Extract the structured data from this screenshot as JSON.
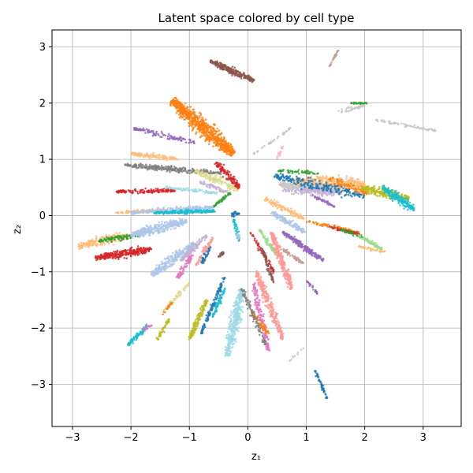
{
  "chart_data": {
    "type": "scatter",
    "title": "Latent space colored by cell type",
    "xlabel": "z₁",
    "ylabel": "z₂",
    "xlim": [
      -3.35,
      3.65
    ],
    "ylim": [
      -3.75,
      3.3
    ],
    "xticks": [
      -3,
      -2,
      -1,
      0,
      1,
      2,
      3
    ],
    "yticks": [
      -3,
      -2,
      -1,
      0,
      1,
      2,
      3
    ],
    "xtick_labels": [
      "−3",
      "−2",
      "−1",
      "0",
      "1",
      "2",
      "3"
    ],
    "ytick_labels": [
      "−3",
      "−2",
      "−1",
      "0",
      "1",
      "2",
      "3"
    ],
    "grid": true,
    "legend": "none",
    "palette": [
      "#1f77b4",
      "#aec7e8",
      "#ff7f0e",
      "#ffbb78",
      "#2ca02c",
      "#98df8a",
      "#d62728",
      "#ff9896",
      "#9467bd",
      "#c5b0d5",
      "#8c564b",
      "#c49c94",
      "#e377c2",
      "#f7b6d2",
      "#7f7f7f",
      "#c7c7c7",
      "#bcbd22",
      "#dbdb8d",
      "#17becf",
      "#9edae5"
    ],
    "clusters": [
      {
        "color": "#8c564b",
        "x0": -0.65,
        "y0": 2.75,
        "x1": 0.1,
        "y1": 2.4,
        "width": 0.09,
        "count": 260
      },
      {
        "color": "#c49c94",
        "x0": 1.4,
        "y0": 2.65,
        "x1": 1.55,
        "y1": 2.95,
        "width": 0.02,
        "count": 30
      },
      {
        "color": "#2ca02c",
        "x0": 1.75,
        "y0": 2.0,
        "x1": 2.05,
        "y1": 2.0,
        "width": 0.03,
        "count": 25
      },
      {
        "color": "#c7c7c7",
        "x0": 1.55,
        "y0": 1.85,
        "x1": 2.0,
        "y1": 1.95,
        "width": 0.06,
        "count": 40
      },
      {
        "color": "#c7c7c7",
        "x0": 2.2,
        "y0": 1.7,
        "x1": 3.25,
        "y1": 1.5,
        "width": 0.04,
        "count": 70
      },
      {
        "color": "#c7c7c7",
        "x0": 0.8,
        "y0": 1.6,
        "x1": 0.1,
        "y1": 1.1,
        "width": 0.03,
        "count": 40
      },
      {
        "color": "#ff7f0e",
        "x0": -1.3,
        "y0": 2.05,
        "x1": -0.25,
        "y1": 1.1,
        "width": 0.2,
        "count": 720
      },
      {
        "color": "#9467bd",
        "x0": -1.95,
        "y0": 1.55,
        "x1": -0.9,
        "y1": 1.3,
        "width": 0.07,
        "count": 110
      },
      {
        "color": "#ffbb78",
        "x0": -2.0,
        "y0": 1.1,
        "x1": -1.2,
        "y1": 1.0,
        "width": 0.07,
        "count": 110
      },
      {
        "color": "#7f7f7f",
        "x0": -2.1,
        "y0": 0.9,
        "x1": -0.45,
        "y1": 0.75,
        "width": 0.07,
        "count": 280
      },
      {
        "color": "#dbdb8d",
        "x0": -0.9,
        "y0": 0.8,
        "x1": -0.15,
        "y1": 0.45,
        "width": 0.1,
        "count": 140
      },
      {
        "color": "#d62728",
        "x0": -0.55,
        "y0": 0.95,
        "x1": -0.15,
        "y1": 0.5,
        "width": 0.09,
        "count": 120
      },
      {
        "color": "#c5b0d5",
        "x0": -0.85,
        "y0": 0.6,
        "x1": -0.3,
        "y1": 0.4,
        "width": 0.06,
        "count": 60
      },
      {
        "color": "#d62728",
        "x0": -2.25,
        "y0": 0.42,
        "x1": -1.25,
        "y1": 0.45,
        "width": 0.06,
        "count": 150
      },
      {
        "color": "#9edae5",
        "x0": -1.4,
        "y0": 0.5,
        "x1": -0.5,
        "y1": 0.4,
        "width": 0.05,
        "count": 80
      },
      {
        "color": "#2ca02c",
        "x0": -0.6,
        "y0": 0.15,
        "x1": -0.3,
        "y1": 0.4,
        "width": 0.05,
        "count": 40
      },
      {
        "color": "#ffbb78",
        "x0": -2.25,
        "y0": 0.05,
        "x1": -1.4,
        "y1": 0.1,
        "width": 0.05,
        "count": 80
      },
      {
        "color": "#aec7e8",
        "x0": -2.0,
        "y0": 0.05,
        "x1": -0.6,
        "y1": 0.15,
        "width": 0.08,
        "count": 260
      },
      {
        "color": "#17becf",
        "x0": -1.6,
        "y0": 0.05,
        "x1": -0.55,
        "y1": 0.08,
        "width": 0.05,
        "count": 200
      },
      {
        "color": "#ffbb78",
        "x0": -2.9,
        "y0": -0.55,
        "x1": -2.05,
        "y1": -0.35,
        "width": 0.13,
        "count": 200
      },
      {
        "color": "#2ca02c",
        "x0": -2.55,
        "y0": -0.45,
        "x1": -1.85,
        "y1": -0.35,
        "width": 0.07,
        "count": 90
      },
      {
        "color": "#d62728",
        "x0": -2.6,
        "y0": -0.75,
        "x1": -1.65,
        "y1": -0.6,
        "width": 0.11,
        "count": 300
      },
      {
        "color": "#aec7e8",
        "x0": -2.0,
        "y0": -0.35,
        "x1": -1.05,
        "y1": -0.1,
        "width": 0.14,
        "count": 350
      },
      {
        "color": "#aec7e8",
        "x0": -1.65,
        "y0": -1.05,
        "x1": -0.9,
        "y1": -0.5,
        "width": 0.13,
        "count": 300
      },
      {
        "color": "#c5b0d5",
        "x0": -1.15,
        "y0": -0.8,
        "x1": -0.7,
        "y1": -0.35,
        "width": 0.08,
        "count": 100
      },
      {
        "color": "#e377c2",
        "x0": -1.2,
        "y0": -1.1,
        "x1": -0.95,
        "y1": -0.7,
        "width": 0.07,
        "count": 80
      },
      {
        "color": "#1f77b4",
        "x0": -0.8,
        "y0": -0.85,
        "x1": -0.65,
        "y1": -0.55,
        "width": 0.06,
        "count": 50
      },
      {
        "color": "#8c564b",
        "x0": -0.5,
        "y0": -0.75,
        "x1": -0.42,
        "y1": -0.65,
        "width": 0.04,
        "count": 20
      },
      {
        "color": "#ff9896",
        "x0": -0.9,
        "y0": -0.9,
        "x1": -0.6,
        "y1": -0.4,
        "width": 0.05,
        "count": 60
      },
      {
        "color": "#dbdb8d",
        "x0": -1.45,
        "y0": -1.7,
        "x1": -1.0,
        "y1": -1.2,
        "width": 0.05,
        "count": 60
      },
      {
        "color": "#ff7f0e",
        "x0": -1.45,
        "y0": -1.75,
        "x1": -1.3,
        "y1": -1.55,
        "width": 0.03,
        "count": 20
      },
      {
        "color": "#bcbd22",
        "x0": -1.55,
        "y0": -2.2,
        "x1": -1.35,
        "y1": -1.85,
        "width": 0.05,
        "count": 50
      },
      {
        "color": "#17becf",
        "x0": -2.05,
        "y0": -2.3,
        "x1": -1.7,
        "y1": -1.95,
        "width": 0.07,
        "count": 90
      },
      {
        "color": "#e377c2",
        "x0": -1.8,
        "y0": -2.05,
        "x1": -1.65,
        "y1": -1.95,
        "width": 0.03,
        "count": 15
      },
      {
        "color": "#bcbd22",
        "x0": -1.0,
        "y0": -2.2,
        "x1": -0.7,
        "y1": -1.5,
        "width": 0.07,
        "count": 150
      },
      {
        "color": "#1f77b4",
        "x0": -0.8,
        "y0": -2.1,
        "x1": -0.4,
        "y1": -1.1,
        "width": 0.05,
        "count": 120
      },
      {
        "color": "#17becf",
        "x0": -0.6,
        "y0": -1.8,
        "x1": -0.4,
        "y1": -1.3,
        "width": 0.05,
        "count": 60
      },
      {
        "color": "#1f77b4",
        "x0": -0.3,
        "y0": 0.0,
        "x1": -0.15,
        "y1": 0.05,
        "width": 0.06,
        "count": 30
      },
      {
        "color": "#17becf",
        "x0": -0.25,
        "y0": -0.05,
        "x1": -0.15,
        "y1": -0.45,
        "width": 0.04,
        "count": 40
      },
      {
        "color": "#aec7e8",
        "x0": -0.2,
        "y0": -0.3,
        "x1": -0.15,
        "y1": -0.4,
        "width": 0.03,
        "count": 15
      },
      {
        "color": "#9edae5",
        "x0": -0.35,
        "y0": -2.5,
        "x1": -0.1,
        "y1": -1.3,
        "width": 0.14,
        "count": 400
      },
      {
        "color": "#d62728",
        "x0": 0.05,
        "y0": -0.3,
        "x1": 0.45,
        "y1": -1.0,
        "width": 0.05,
        "count": 60
      },
      {
        "color": "#98df8a",
        "x0": 0.2,
        "y0": -0.25,
        "x1": 0.5,
        "y1": -0.7,
        "width": 0.06,
        "count": 70
      },
      {
        "color": "#8c564b",
        "x0": 0.25,
        "y0": -0.6,
        "x1": 0.45,
        "y1": -1.2,
        "width": 0.05,
        "count": 60
      },
      {
        "color": "#ff9896",
        "x0": 0.15,
        "y0": -1.0,
        "x1": 0.6,
        "y1": -2.2,
        "width": 0.1,
        "count": 250
      },
      {
        "color": "#e377c2",
        "x0": 0.1,
        "y0": -1.2,
        "x1": 0.35,
        "y1": -2.4,
        "width": 0.08,
        "count": 160
      },
      {
        "color": "#ff7f0e",
        "x0": 0.05,
        "y0": -1.7,
        "x1": 0.35,
        "y1": -2.1,
        "width": 0.06,
        "count": 60
      },
      {
        "color": "#7f7f7f",
        "x0": -0.1,
        "y0": -1.3,
        "x1": 0.3,
        "y1": -2.3,
        "width": 0.06,
        "count": 90
      },
      {
        "color": "#ff9896",
        "x0": 0.4,
        "y0": -0.3,
        "x1": 0.75,
        "y1": -1.3,
        "width": 0.1,
        "count": 260
      },
      {
        "color": "#c49c94",
        "x0": 0.6,
        "y0": -0.6,
        "x1": 0.95,
        "y1": -0.85,
        "width": 0.05,
        "count": 60
      },
      {
        "color": "#9467bd",
        "x0": 0.6,
        "y0": -0.3,
        "x1": 1.3,
        "y1": -0.8,
        "width": 0.07,
        "count": 200
      },
      {
        "color": "#9467bd",
        "x0": 1.0,
        "y0": -1.15,
        "x1": 1.2,
        "y1": -1.4,
        "width": 0.03,
        "count": 25
      },
      {
        "color": "#aec7e8",
        "x0": 0.4,
        "y0": 0.05,
        "x1": 1.0,
        "y1": -0.3,
        "width": 0.08,
        "count": 150
      },
      {
        "color": "#ffbb78",
        "x0": 0.3,
        "y0": 0.3,
        "x1": 0.95,
        "y1": -0.05,
        "width": 0.08,
        "count": 120
      },
      {
        "color": "#ff7f0e",
        "x0": 1.0,
        "y0": -0.1,
        "x1": 1.9,
        "y1": -0.3,
        "width": 0.05,
        "count": 80
      },
      {
        "color": "#d62728",
        "x0": 1.4,
        "y0": -0.2,
        "x1": 1.95,
        "y1": -0.35,
        "width": 0.04,
        "count": 50
      },
      {
        "color": "#2ca02c",
        "x0": 1.6,
        "y0": -0.25,
        "x1": 2.0,
        "y1": -0.4,
        "width": 0.04,
        "count": 40
      },
      {
        "color": "#98df8a",
        "x0": 1.9,
        "y0": -0.35,
        "x1": 2.3,
        "y1": -0.6,
        "width": 0.05,
        "count": 70
      },
      {
        "color": "#ffbb78",
        "x0": 1.9,
        "y0": -0.55,
        "x1": 2.35,
        "y1": -0.65,
        "width": 0.04,
        "count": 40
      },
      {
        "color": "#1f77b4",
        "x0": 1.15,
        "y0": -2.75,
        "x1": 1.35,
        "y1": -3.25,
        "width": 0.03,
        "count": 50
      },
      {
        "color": "#c7c7c7",
        "x0": 0.95,
        "y0": -2.35,
        "x1": 0.7,
        "y1": -2.6,
        "width": 0.02,
        "count": 10
      },
      {
        "color": "#2ca02c",
        "x0": 0.5,
        "y0": 0.8,
        "x1": 1.2,
        "y1": 0.75,
        "width": 0.05,
        "count": 50
      },
      {
        "color": "#ffbb78",
        "x0": 0.8,
        "y0": 0.6,
        "x1": 2.0,
        "y1": 0.55,
        "width": 0.2,
        "count": 500
      },
      {
        "color": "#c7c7c7",
        "x0": 0.55,
        "y0": 0.55,
        "x1": 1.55,
        "y1": 0.45,
        "width": 0.13,
        "count": 280
      },
      {
        "color": "#c5b0d5",
        "x0": 0.6,
        "y0": 0.45,
        "x1": 1.6,
        "y1": 0.4,
        "width": 0.1,
        "count": 150
      },
      {
        "color": "#1f77b4",
        "x0": 0.45,
        "y0": 0.7,
        "x1": 2.0,
        "y1": 0.35,
        "width": 0.14,
        "count": 220
      },
      {
        "color": "#ff7f0e",
        "x0": 1.4,
        "y0": 0.65,
        "x1": 2.05,
        "y1": 0.4,
        "width": 0.1,
        "count": 80
      },
      {
        "color": "#bcbd22",
        "x0": 1.95,
        "y0": 0.5,
        "x1": 2.75,
        "y1": 0.3,
        "width": 0.14,
        "count": 220
      },
      {
        "color": "#17becf",
        "x0": 2.3,
        "y0": 0.5,
        "x1": 2.85,
        "y1": 0.1,
        "width": 0.12,
        "count": 180
      },
      {
        "color": "#9467bd",
        "x0": 1.1,
        "y0": 0.35,
        "x1": 1.5,
        "y1": 0.15,
        "width": 0.05,
        "count": 40
      },
      {
        "color": "#f7b6d2",
        "x0": 0.6,
        "y0": 1.25,
        "x1": 0.5,
        "y1": 1.0,
        "width": 0.03,
        "count": 20
      }
    ]
  }
}
